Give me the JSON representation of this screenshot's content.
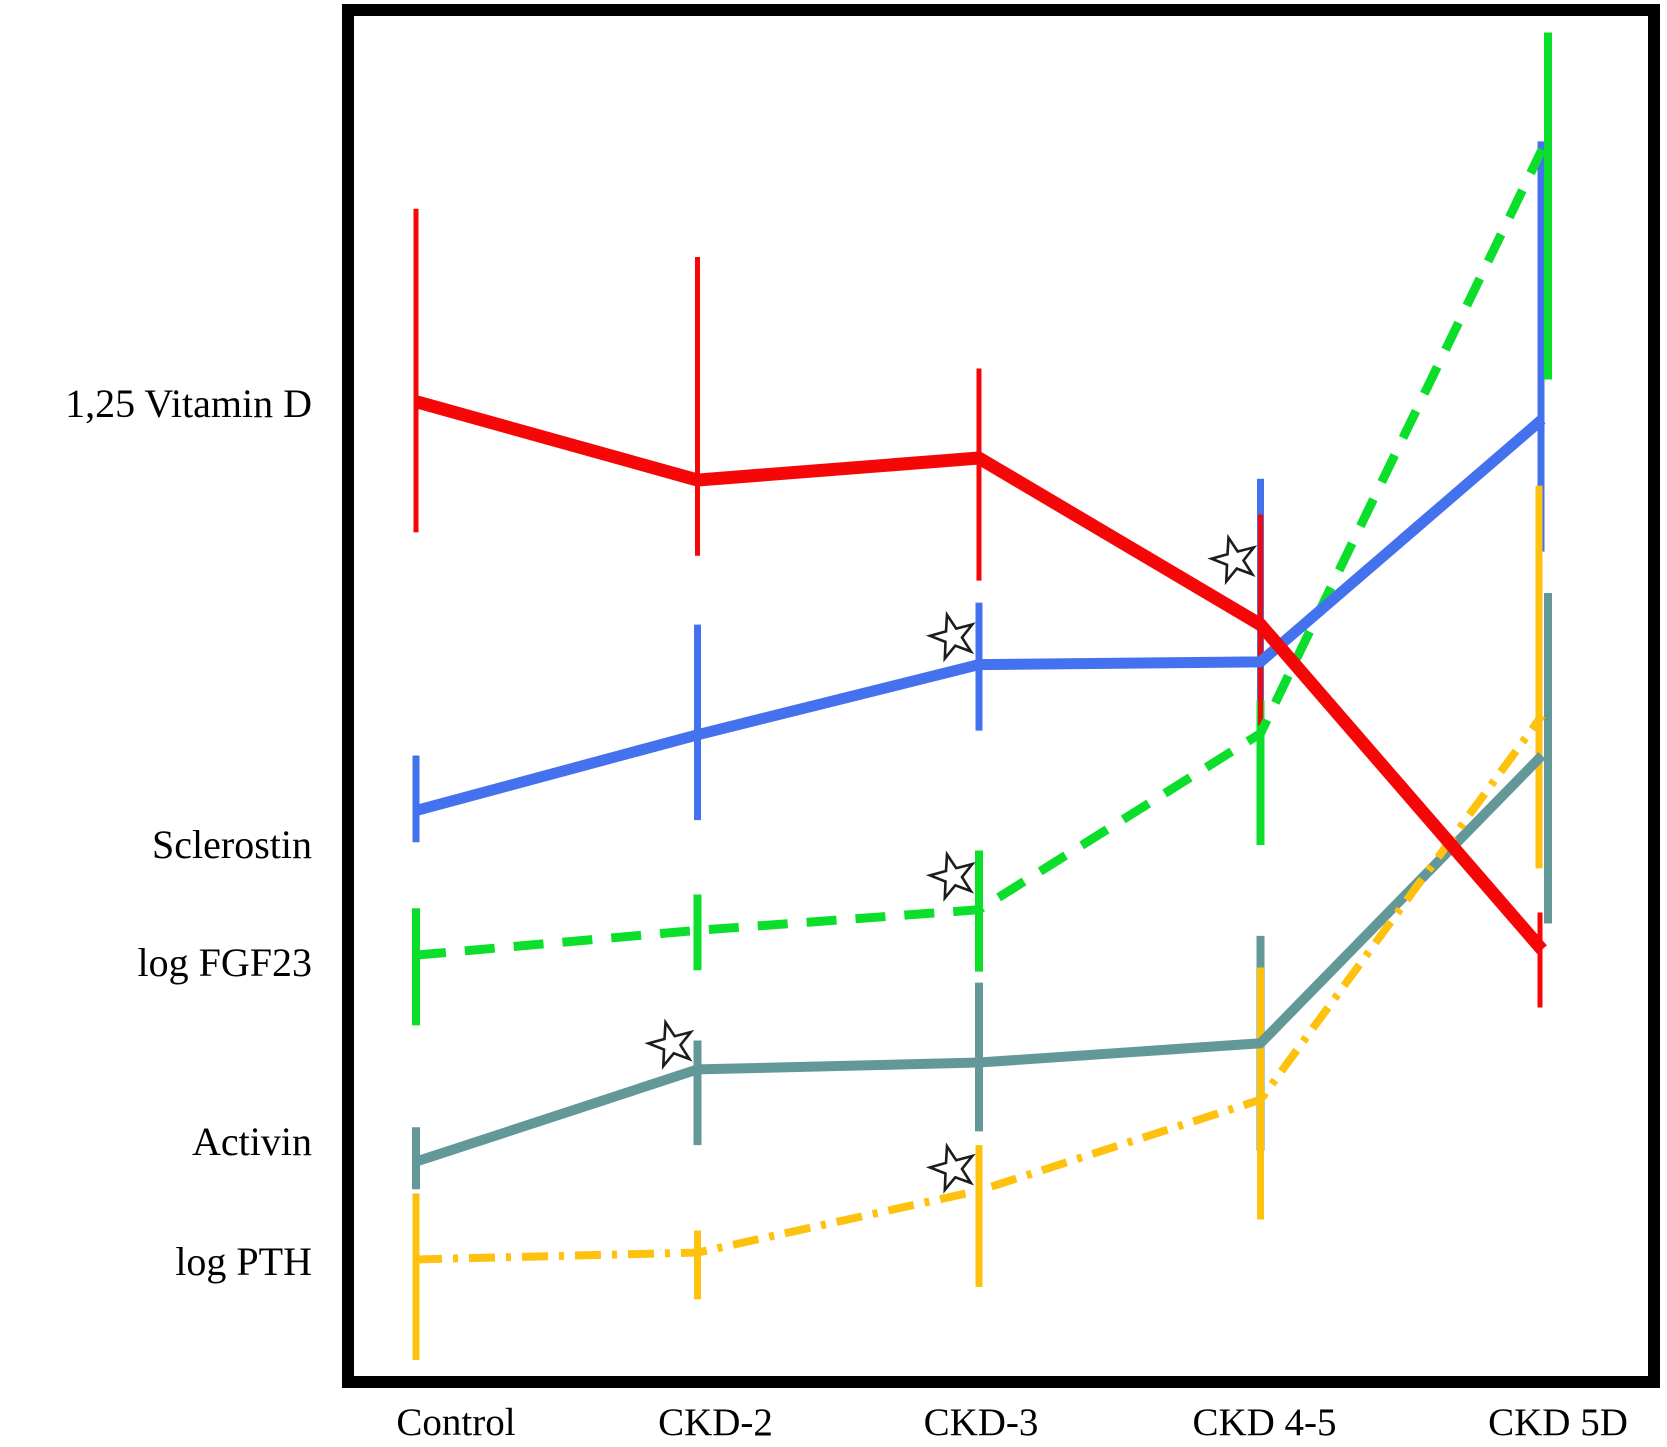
{
  "figure": {
    "background_color": "#ffffff",
    "frame_color": "#000000",
    "star_marker": {
      "meaning": "significance-star",
      "outline_color": "#1c1c1c",
      "fill_color": "#ffffff"
    }
  },
  "x_axis": {
    "categories": [
      "Control",
      "CKD-2",
      "CKD-3",
      "CKD 4-5",
      "CKD 5D"
    ]
  },
  "y_axis": {
    "labels": [
      {
        "text": "1,25 Vitamin D",
        "level": 71.0
      },
      {
        "text": "Sclerostin",
        "level": 39.0
      },
      {
        "text": "log FGF23",
        "level": 30.4
      },
      {
        "text": "Activin",
        "level": 17.4
      },
      {
        "text": "log PTH",
        "level": 8.7
      }
    ]
  },
  "chart_data": {
    "type": "line",
    "title": "",
    "xlabel": "",
    "ylabel": "",
    "value_units": "relative level (no numeric axis shown); 0 = bottom frame, 100 = top frame",
    "grid": false,
    "legend_position": "left-margin-labels",
    "categories": [
      "Control",
      "CKD-2",
      "CKD-3",
      "CKD 4-5",
      "CKD 5D"
    ],
    "series": [
      {
        "name": "1,25 Vitamin D",
        "color": "#f60707",
        "style": "solid",
        "values": [
          71.2,
          65.5,
          67.1,
          55.0,
          31.4
        ],
        "error_high": [
          85.2,
          81.7,
          73.6,
          63.0,
          34.1
        ],
        "error_low": [
          61.7,
          60.0,
          58.2,
          47.7,
          27.2
        ]
      },
      {
        "name": "Sclerostin",
        "color": "#4472ee",
        "style": "solid",
        "values": [
          41.5,
          47.0,
          52.1,
          52.3,
          69.9
        ],
        "error_high": [
          45.5,
          55.0,
          56.6,
          65.6,
          90.1
        ],
        "error_low": [
          39.2,
          40.8,
          47.3,
          48.1,
          60.3
        ]
      },
      {
        "name": "log FGF23",
        "color": "#0bdf2b",
        "style": "dashed",
        "values": [
          31.0,
          32.8,
          34.3,
          47.1,
          89.5
        ],
        "error_high": [
          34.4,
          35.4,
          38.6,
          49.5,
          98.0
        ],
        "error_low": [
          25.9,
          29.9,
          29.8,
          39.0,
          72.8
        ]
      },
      {
        "name": "Activin",
        "color": "#639899",
        "style": "solid",
        "values": [
          16.0,
          22.7,
          23.2,
          24.6,
          45.5
        ],
        "error_high": [
          18.5,
          24.8,
          29.0,
          32.4,
          57.3
        ],
        "error_low": [
          14.0,
          17.2,
          18.2,
          16.8,
          33.3
        ]
      },
      {
        "name": "log PTH",
        "color": "#fec10d",
        "style": "dash-dot",
        "values": [
          8.9,
          9.4,
          13.9,
          20.5,
          48.4
        ],
        "error_high": [
          13.7,
          11.0,
          17.2,
          30.1,
          65.1
        ],
        "error_low": [
          1.6,
          6.0,
          6.9,
          11.8,
          37.3
        ]
      }
    ],
    "significance_stars": [
      {
        "series": "Activin",
        "category": "CKD-2",
        "level": 24.5
      },
      {
        "series": "Sclerostin",
        "category": "CKD-3",
        "level": 54.1
      },
      {
        "series": "log FGF23",
        "category": "CKD-3",
        "level": 36.7
      },
      {
        "series": "log PTH",
        "category": "CKD-3",
        "level": 15.5
      },
      {
        "series": "1,25 Vitamin D",
        "category": "CKD 4-5",
        "level": 59.7
      }
    ]
  }
}
